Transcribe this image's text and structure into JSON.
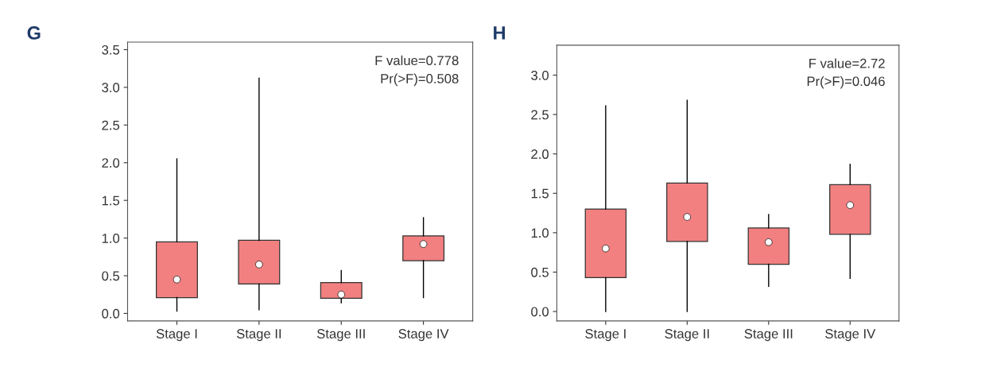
{
  "chart_data": [
    {
      "type": "box",
      "title": "G",
      "categories": [
        "Stage I",
        "Stage II",
        "Stage III",
        "Stage IV"
      ],
      "ylim": [
        -0.1,
        3.6
      ],
      "yticks": [
        {
          "value": 0,
          "label": "0.0"
        },
        0.5,
        {
          "value": 1,
          "label": "1.0"
        },
        1.5,
        {
          "value": 2,
          "label": "2.0"
        },
        2.5,
        {
          "value": 3,
          "label": "3.0"
        },
        3.5
      ],
      "annotations": [
        "F value=0.778",
        "Pr(>F)=0.508"
      ],
      "series": [
        {
          "color": "#f28080",
          "boxes": [
            {
              "low": 0.03,
              "q1": 0.21,
              "median": 0.45,
              "q3": 0.95,
              "high": 2.05
            },
            {
              "low": 0.05,
              "q1": 0.39,
              "median": 0.65,
              "q3": 0.97,
              "high": 3.12
            },
            {
              "low": 0.14,
              "q1": 0.2,
              "median": 0.25,
              "q3": 0.41,
              "high": 0.57
            },
            {
              "low": 0.21,
              "q1": 0.7,
              "median": 0.92,
              "q3": 1.03,
              "high": 1.27
            }
          ]
        }
      ]
    },
    {
      "type": "box",
      "title": "H",
      "categories": [
        "Stage I",
        "Stage II",
        "Stage III",
        "Stage IV"
      ],
      "ylim": [
        -0.12,
        3.38
      ],
      "yticks": [
        {
          "value": 0,
          "label": "0.0"
        },
        0.5,
        {
          "value": 1,
          "label": "1.0"
        },
        1.5,
        {
          "value": 2,
          "label": "2.0"
        },
        2.5,
        {
          "value": 3,
          "label": "3.0"
        }
      ],
      "annotations": [
        "F value=2.72",
        "Pr(>F)=0.046"
      ],
      "series": [
        {
          "color": "#f28080",
          "boxes": [
            {
              "low": 0,
              "q1": 0.43,
              "median": 0.8,
              "q3": 1.3,
              "high": 2.61
            },
            {
              "low": 0,
              "q1": 0.89,
              "median": 1.2,
              "q3": 1.63,
              "high": 2.68
            },
            {
              "low": 0.32,
              "q1": 0.6,
              "median": 0.88,
              "q3": 1.06,
              "high": 1.23
            },
            {
              "low": 0.42,
              "q1": 0.98,
              "median": 1.35,
              "q3": 1.61,
              "high": 1.87
            }
          ]
        }
      ]
    }
  ]
}
